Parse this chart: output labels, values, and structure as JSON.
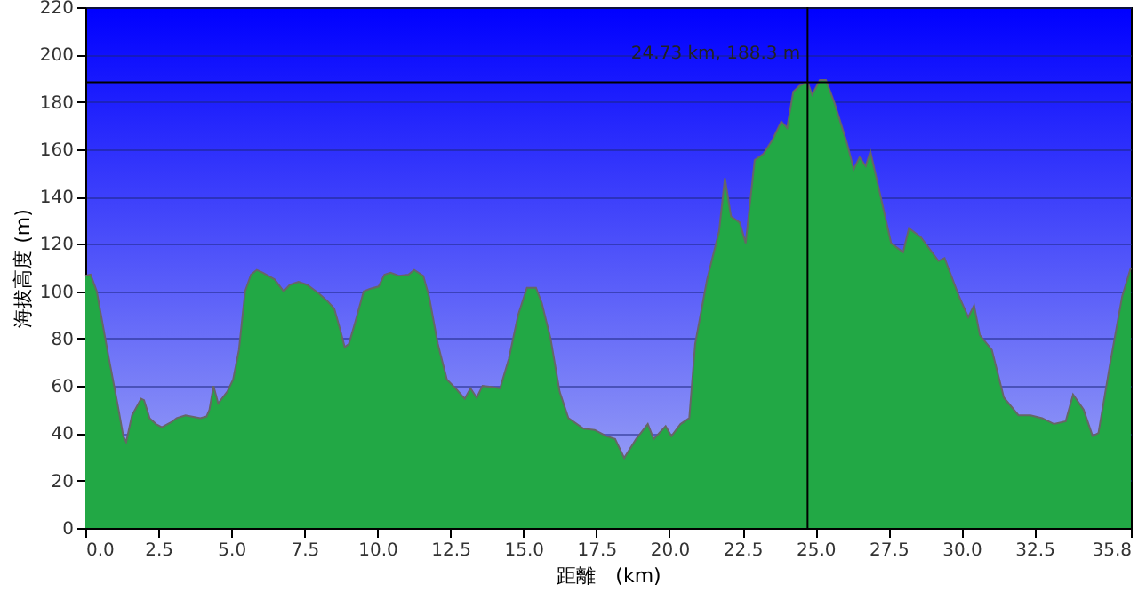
{
  "chart_data": {
    "type": "area",
    "xlabel": "距離　(km)",
    "ylabel": "海拔高度 (m)",
    "x": [
      0,
      0.18,
      0.39,
      0.79,
      1.1,
      1.3,
      1.4,
      1.6,
      1.91,
      2.01,
      2.2,
      2.42,
      2.62,
      2.93,
      3.13,
      3.43,
      3.94,
      4.15,
      4.25,
      4.39,
      4.55,
      4.86,
      5.06,
      5.26,
      5.47,
      5.67,
      5.87,
      6.08,
      6.48,
      6.79,
      7.0,
      7.3,
      7.6,
      8.0,
      8.3,
      8.52,
      8.72,
      8.88,
      9.02,
      9.23,
      9.53,
      9.74,
      10.04,
      10.24,
      10.45,
      10.75,
      11.06,
      11.26,
      11.57,
      11.77,
      12.07,
      12.38,
      12.68,
      12.99,
      13.19,
      13.4,
      13.6,
      13.9,
      14.2,
      14.5,
      14.82,
      15.12,
      15.43,
      15.63,
      15.93,
      16.24,
      16.54,
      17.05,
      17.44,
      17.84,
      18.14,
      18.45,
      18.86,
      19.26,
      19.46,
      19.87,
      20.07,
      20.38,
      20.68,
      20.88,
      21.29,
      21.7,
      21.9,
      22.11,
      22.41,
      22.61,
      22.92,
      23.22,
      23.53,
      23.83,
      24.03,
      24.24,
      24.45,
      24.73,
      24.89,
      25.15,
      25.36,
      25.66,
      26.07,
      26.31,
      26.51,
      26.72,
      26.88,
      27.18,
      27.59,
      28.0,
      28.2,
      28.61,
      29.21,
      29.42,
      29.92,
      30.23,
      30.43,
      30.63,
      31.04,
      31.45,
      31.95,
      32.36,
      32.76,
      33.17,
      33.57,
      33.82,
      34.18,
      34.49,
      34.69,
      35.1,
      35.5,
      35.8
    ],
    "series": [
      {
        "color": "#22a845",
        "values": [
          106.5,
          107,
          100,
          72.7,
          52.6,
          38.8,
          36.3,
          47.6,
          54.6,
          54,
          46.4,
          43.9,
          42.6,
          44.6,
          46.4,
          47.6,
          46.4,
          47.1,
          50,
          60,
          52.6,
          57.6,
          62.7,
          75.2,
          100,
          107,
          109,
          107.8,
          105,
          100,
          102.7,
          104,
          102.7,
          99,
          95.7,
          92.7,
          84,
          76.4,
          77.7,
          86.5,
          100,
          101,
          102,
          107,
          107.8,
          106.5,
          107,
          109,
          106.5,
          97.7,
          77.7,
          62.7,
          59,
          54.6,
          59,
          55,
          60,
          59.6,
          59,
          71.4,
          90,
          101.5,
          101.5,
          95,
          80,
          57.6,
          46.4,
          42,
          41.4,
          38.8,
          37.6,
          29.6,
          37.6,
          43.9,
          37.6,
          43,
          38.8,
          43.9,
          46.4,
          77.7,
          105,
          125.3,
          147.8,
          131.6,
          129,
          120.3,
          155.4,
          158,
          164,
          171.7,
          169,
          184.2,
          186.7,
          188.3,
          183,
          189.2,
          189.2,
          179.2,
          162.9,
          151.6,
          156.6,
          152.9,
          159,
          142.8,
          120.3,
          116.5,
          126.6,
          122.8,
          112.8,
          114,
          97.7,
          89,
          94,
          81.4,
          75.2,
          55.1,
          47.6,
          47.6,
          46.4,
          43.9,
          45.1,
          56.4,
          50,
          38.8,
          40.1,
          70.2,
          97.7,
          110
        ]
      }
    ],
    "xlim": [
      0,
      35.8
    ],
    "xticks": [
      {
        "value": 0,
        "label": "0.0"
      },
      {
        "value": 2.5,
        "label": "2.5"
      },
      {
        "value": 5,
        "label": "5.0"
      },
      {
        "value": 7.5,
        "label": "7.5"
      },
      {
        "value": 10,
        "label": "10.0"
      },
      {
        "value": 12.5,
        "label": "12.5"
      },
      {
        "value": 15,
        "label": "15.0"
      },
      {
        "value": 17.5,
        "label": "17.5"
      },
      {
        "value": 20,
        "label": "20.0"
      },
      {
        "value": 22.5,
        "label": "22.5"
      },
      {
        "value": 25,
        "label": "25.0"
      },
      {
        "value": 27.5,
        "label": "27.5"
      },
      {
        "value": 30,
        "label": "30.0"
      },
      {
        "value": 32.5,
        "label": "32.5"
      },
      {
        "value": 35.8,
        "label": "35.8"
      }
    ],
    "ylim": [
      0,
      220
    ],
    "yticks": [
      0,
      20,
      40,
      60,
      80,
      100,
      120,
      140,
      160,
      180,
      200,
      220
    ],
    "grid": "y",
    "ref_lines": [
      {
        "axis": "x",
        "value": 24.73,
        "color": "#000000"
      },
      {
        "axis": "y",
        "value": 188.3,
        "color": "#000000"
      }
    ],
    "annotations": [
      {
        "text": "24.73 km, 188.3 m",
        "x": 24.73,
        "y": 188.3
      }
    ]
  }
}
